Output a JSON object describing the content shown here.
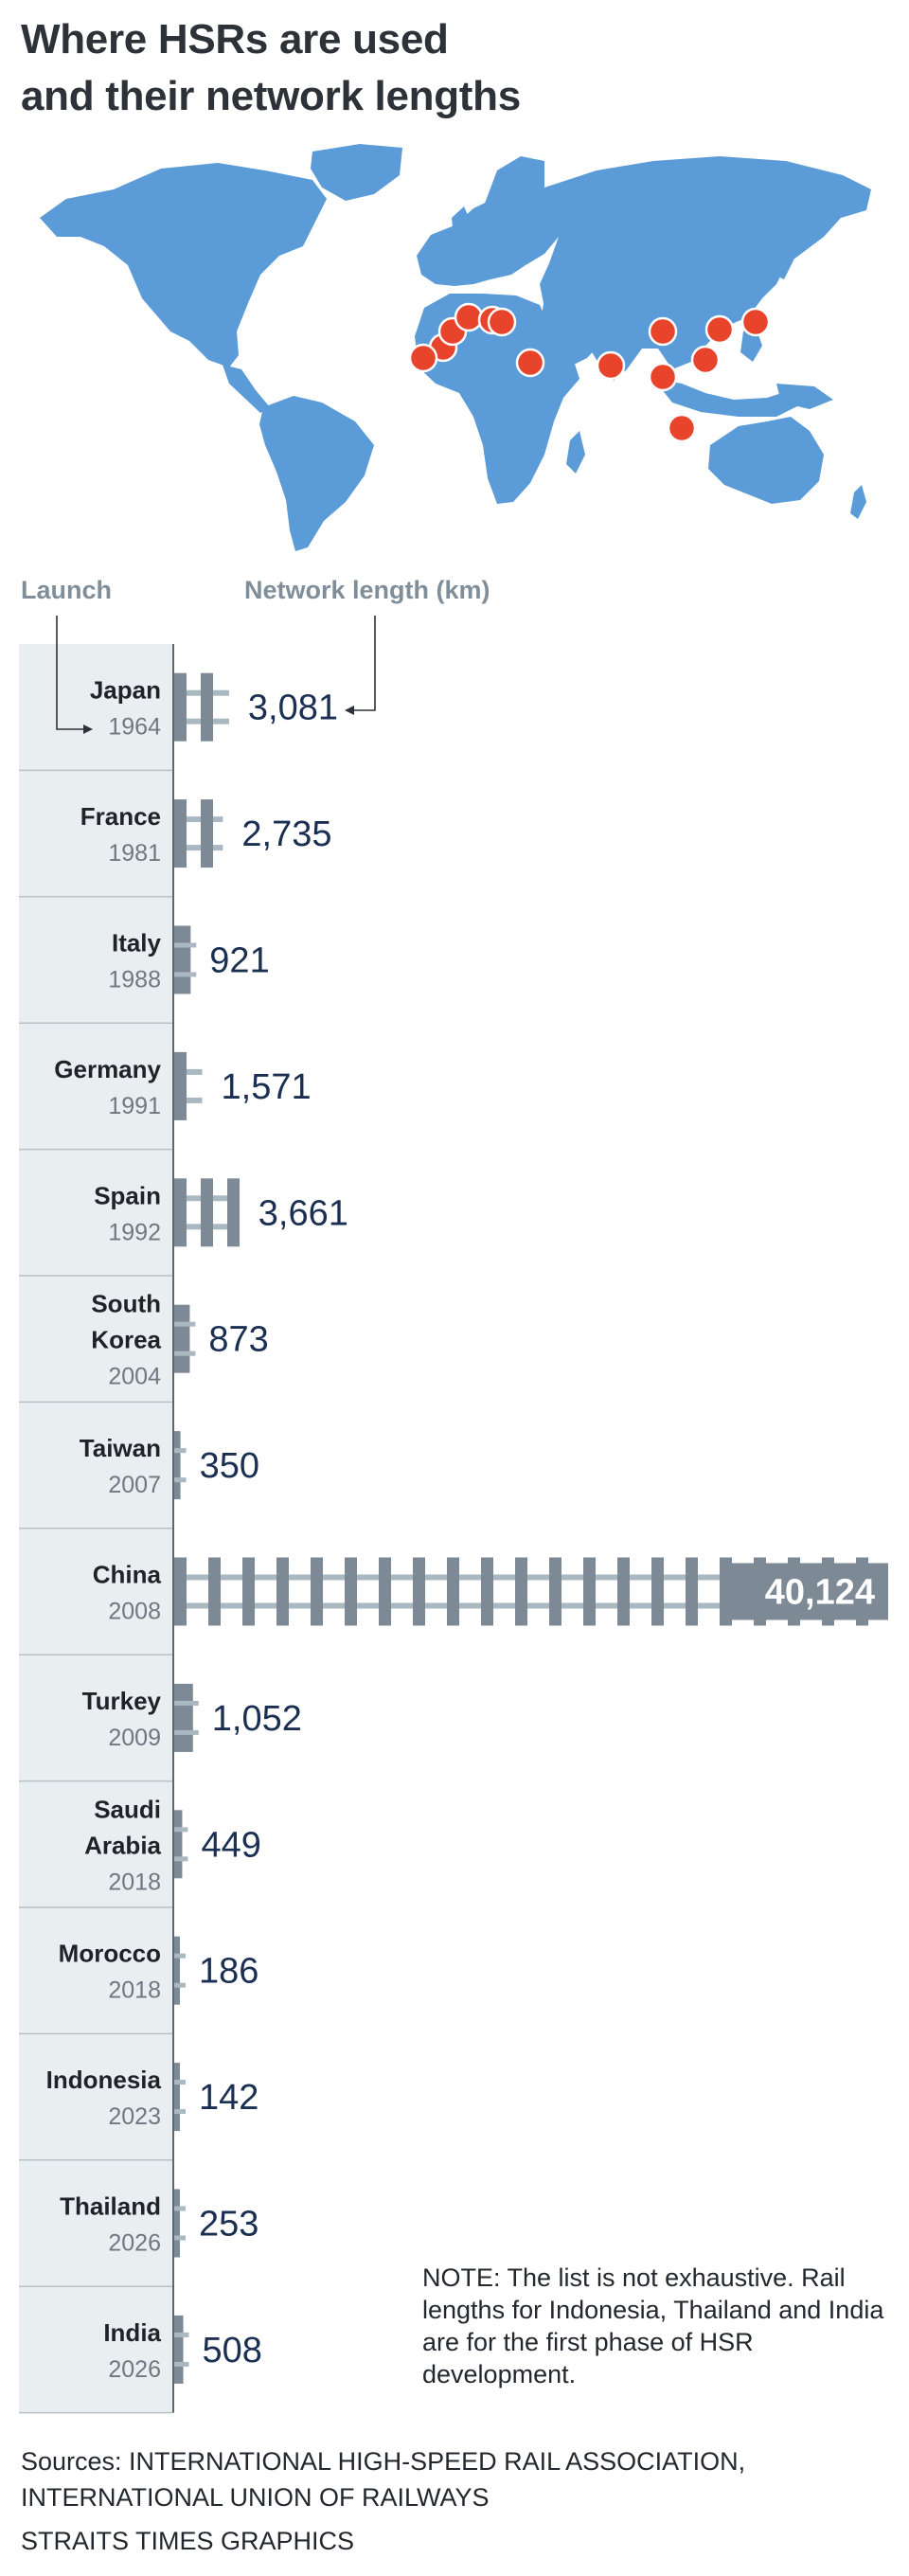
{
  "title_line1": "Where HSRs are used",
  "title_line2": "and their network lengths",
  "launch_header": "Launch",
  "length_header": "Network length (km)",
  "note": "NOTE: The list is not exhaustive. Rail lengths for Indonesia, Thailand and India are for the first phase of HSR development.",
  "sources": "Sources: INTERNATIONAL HIGH-SPEED RAIL ASSOCIATION, INTERNATIONAL UNION OF RAILWAYS",
  "credit": "STRAITS TIMES GRAPHICS",
  "colors": {
    "map_land": "#5b9bd8",
    "marker": "#e8442c",
    "rail": "#7d8994",
    "rail_light": "#aab8c2",
    "label_panel": "#e9eef1",
    "value_text": "#1b2f52"
  },
  "chart_data": {
    "type": "bar",
    "categories": [
      "Japan",
      "France",
      "Italy",
      "Germany",
      "Spain",
      "South Korea",
      "Taiwan",
      "China",
      "Turkey",
      "Saudi Arabia",
      "Morocco",
      "Indonesia",
      "Thailand",
      "India"
    ],
    "category_lines": [
      [
        "Japan"
      ],
      [
        "France"
      ],
      [
        "Italy"
      ],
      [
        "Germany"
      ],
      [
        "Spain"
      ],
      [
        "South",
        "Korea"
      ],
      [
        "Taiwan"
      ],
      [
        "China"
      ],
      [
        "Turkey"
      ],
      [
        "Saudi",
        "Arabia"
      ],
      [
        "Morocco"
      ],
      [
        "Indonesia"
      ],
      [
        "Thailand"
      ],
      [
        "India"
      ]
    ],
    "launch_years": [
      "1964",
      "1981",
      "1988",
      "1991",
      "1992",
      "2004",
      "2007",
      "2008",
      "2009",
      "2018",
      "2018",
      "2023",
      "2026",
      "2026"
    ],
    "values": [
      3081,
      2735,
      921,
      1571,
      3661,
      873,
      350,
      40124,
      1052,
      449,
      186,
      142,
      253,
      508
    ],
    "value_labels": [
      "3,081",
      "2,735",
      "921",
      "1,571",
      "3,661",
      "873",
      "350",
      "40,124",
      "1,052",
      "449",
      "186",
      "142",
      "253",
      "508"
    ],
    "xlabel": "Network length (km)",
    "ylabel": "Launch",
    "xlim": [
      0,
      40124
    ]
  }
}
